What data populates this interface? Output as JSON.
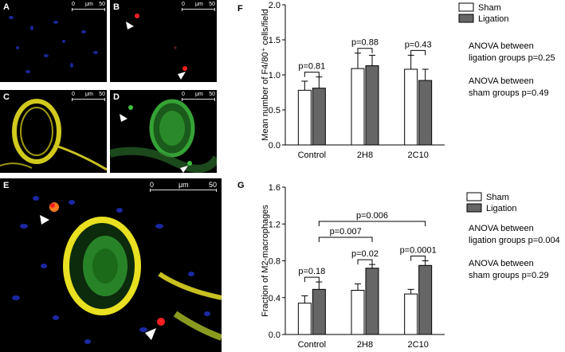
{
  "panels": {
    "A": {
      "label": "A",
      "scale": {
        "start": "0",
        "unit": "μm",
        "end": "50"
      }
    },
    "B": {
      "label": "B",
      "scale": {
        "start": "0",
        "unit": "μm",
        "end": "50"
      }
    },
    "C": {
      "label": "C",
      "scale": {
        "start": "0",
        "unit": "μm",
        "end": "50"
      }
    },
    "D": {
      "label": "D",
      "scale": {
        "start": "0",
        "unit": "μm",
        "end": "50"
      }
    },
    "E": {
      "label": "E",
      "scale": {
        "start": "0",
        "unit": "μm",
        "end": "50"
      }
    }
  },
  "colors": {
    "sham_fill": "#ffffff",
    "ligation_fill": "#666666",
    "dapi": "#2233cc",
    "f480": "#ff2020",
    "green": "#2f9a2f",
    "yellow": "#e8e020"
  },
  "chart_data": [
    {
      "type": "bar",
      "panel_label": "F",
      "categories": [
        "Control",
        "2H8",
        "2C10"
      ],
      "series": [
        {
          "name": "Sham",
          "values": [
            0.78,
            1.09,
            1.08
          ],
          "errors": [
            0.13,
            0.22,
            0.2
          ]
        },
        {
          "name": "Ligation",
          "values": [
            0.81,
            1.13,
            0.92
          ],
          "errors": [
            0.16,
            0.15,
            0.16
          ]
        }
      ],
      "ylabel": "Mean number of F4/80⁺ cells/field",
      "ylim": [
        0,
        2.0
      ],
      "yticks": [
        "0.0",
        "0.5",
        "1.0",
        "1.5",
        "2.0"
      ],
      "legend": "top-right",
      "annotations": [
        {
          "text": "p=0.81",
          "pair": [
            0,
            0
          ]
        },
        {
          "text": "p=0.88",
          "pair": [
            1,
            1
          ]
        },
        {
          "text": "p=0.43",
          "pair": [
            2,
            2
          ]
        }
      ],
      "anova": [
        {
          "line1": "ANOVA between",
          "line2": "ligation groups p=0.25"
        },
        {
          "line1": "ANOVA between",
          "line2": "sham groups p=0.49"
        }
      ]
    },
    {
      "type": "bar",
      "panel_label": "G",
      "categories": [
        "Control",
        "2H8",
        "2C10"
      ],
      "series": [
        {
          "name": "Sham",
          "values": [
            0.34,
            0.48,
            0.44
          ],
          "errors": [
            0.08,
            0.07,
            0.05
          ]
        },
        {
          "name": "Ligation",
          "values": [
            0.49,
            0.72,
            0.75
          ],
          "errors": [
            0.08,
            0.04,
            0.05
          ]
        }
      ],
      "ylabel": "Fraction of M2-macrophages",
      "ylim": [
        0,
        1.6
      ],
      "yticks": [
        "0.0",
        "0.4",
        "0.8",
        "1.2",
        "1.6"
      ],
      "legend": "top-right",
      "annotations": [
        {
          "text": "p=0.18",
          "pair": [
            0,
            0
          ]
        },
        {
          "text": "p=0.02",
          "pair": [
            1,
            1
          ]
        },
        {
          "text": "p=0.0001",
          "pair": [
            2,
            2
          ]
        },
        {
          "text": "p=0.007",
          "pair": [
            0,
            1
          ]
        },
        {
          "text": "p=0.006",
          "pair": [
            0,
            2
          ]
        }
      ],
      "anova": [
        {
          "line1": "ANOVA between",
          "line2": "ligation groups p=0.004"
        },
        {
          "line1": "ANOVA between",
          "line2": "sham groups p=0.29"
        }
      ]
    }
  ]
}
